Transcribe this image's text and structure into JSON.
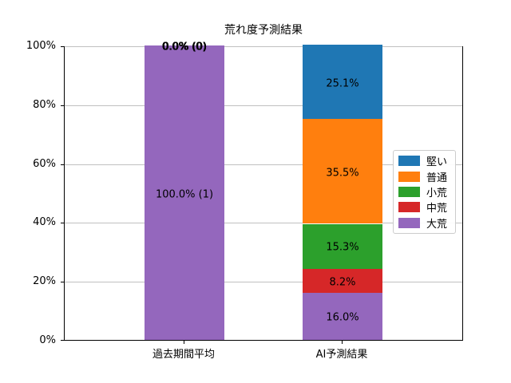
{
  "chart_data": {
    "type": "stacked_bar",
    "title": "荒れ度予測結果",
    "categories": [
      "過去期間平均",
      "AI予測結果"
    ],
    "series": [
      {
        "name": "堅い",
        "color": "#1f77b4",
        "values": [
          0.0,
          25.1
        ]
      },
      {
        "name": "普通",
        "color": "#ff7f0e",
        "values": [
          0.0,
          35.5
        ]
      },
      {
        "name": "小荒",
        "color": "#2ca02c",
        "values": [
          0.0,
          15.3
        ]
      },
      {
        "name": "中荒",
        "color": "#d62728",
        "values": [
          0.0,
          8.2
        ]
      },
      {
        "name": "大荒",
        "color": "#9467bd",
        "values": [
          100.0,
          16.0
        ]
      }
    ],
    "bar_labels": [
      [
        "0.0% (0)",
        "0.0% (0)",
        "0.0% (0)",
        "0.0% (0)",
        "100.0% (1)"
      ],
      [
        "25.1%",
        "35.5%",
        "15.3%",
        "8.2%",
        "16.0%"
      ]
    ],
    "stack_order": "last-series-at-bottom",
    "ylim": [
      0,
      100
    ],
    "yticks": [
      {
        "value": 0,
        "label": "0%"
      },
      {
        "value": 20,
        "label": "20%"
      },
      {
        "value": 40,
        "label": "40%"
      },
      {
        "value": 60,
        "label": "60%"
      },
      {
        "value": 80,
        "label": "80%"
      },
      {
        "value": 100,
        "label": "100%"
      }
    ],
    "grid": true,
    "legend_position": "center-right",
    "colors": {
      "grid": "#c0c0c0",
      "spine": "#000000",
      "background": "#ffffff",
      "text": "#000000"
    }
  }
}
